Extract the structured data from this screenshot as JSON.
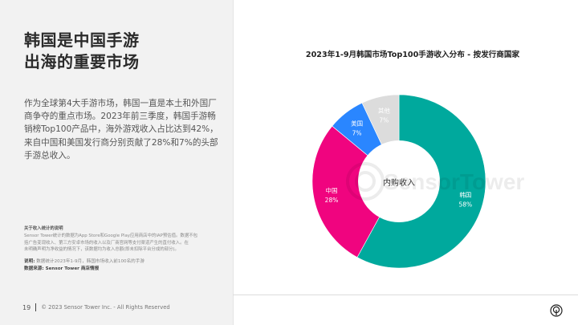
{
  "left": {
    "headline_line1": "韩国是中国手游",
    "headline_line2": "出海的重要市场",
    "body_lines": [
      "作为全球第4大手游市场，韩国一直是本土和外国厂",
      "商争夺的重点市场。2023年前三季度，韩国手游畅",
      "销榜Top100产品中，海外游戏收入占比达到42%，",
      "来自中国和美国发行商分别贡献了28%和7%的头部",
      "手游总收入。"
    ],
    "note_title": "关于收入统计的说明",
    "note_lines": [
      "Sensor Tower统计的数据为App Store和Google Play应用商店中的IAP预估值。数据不包",
      "括广告变现收入、第三方安卓市场的收入以及厂商官网等支付渠道产生的直付收入。在",
      "未明确声明为净收益的情况下，该数据均为收入总额(即未扣除平台分成的部分)。"
    ],
    "explain_label": "说明:",
    "explain_text": " 数据统计2023年1-9月，韩国市场收入前100名的手游",
    "source_label": "数据来源:",
    "source_text": " Sensor Tower 商店情报"
  },
  "footer": {
    "page_number": "19",
    "copyright": "© 2023 Sensor Tower Inc. - All Rights Reserved"
  },
  "chart_data": {
    "type": "pie",
    "variant": "donut",
    "title": "2023年1-9月韩国市场Top100手游收入分布 - 按发行商国家",
    "center_label": "内购收入",
    "watermark": "SensorTower",
    "categories": [
      "韩国",
      "中国",
      "美国",
      "其他"
    ],
    "values": [
      58,
      28,
      7,
      7
    ],
    "value_labels": [
      "58%",
      "28%",
      "7%",
      "7%"
    ],
    "colors": [
      "#00a99d",
      "#f0047f",
      "#2a86ff",
      "#dcdcdc"
    ],
    "start_angle": "top, clockwise",
    "legend": "none (inline labels)"
  }
}
